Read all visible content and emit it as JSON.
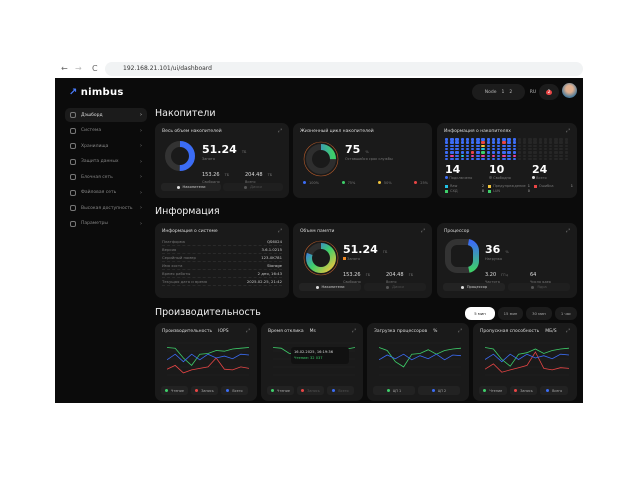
{
  "browser": {
    "url": "192.168.21.101/ui/dashboard",
    "back": "←",
    "forward": "→",
    "reload": "C"
  },
  "header": {
    "logo": "nimbus",
    "node_label": "Node",
    "nodes": [
      "1",
      "2"
    ],
    "lang": "RU",
    "alert_count": "2"
  },
  "sidebar": {
    "items": [
      {
        "label": "Дэшборд",
        "active": true
      },
      {
        "label": "Система"
      },
      {
        "label": "Хранилища"
      },
      {
        "label": "Защита данных"
      },
      {
        "label": "Блочная сеть"
      },
      {
        "label": "Файловая сеть"
      },
      {
        "label": "Высокая доступность"
      },
      {
        "label": "Параметры"
      }
    ]
  },
  "sections": {
    "storage": "Накопители",
    "info": "Информация",
    "perf": "Производительность"
  },
  "storage_total": {
    "title": "Весь объем накопителей",
    "used": "51.24",
    "used_unit": "ТБ",
    "used_label": "Занято",
    "free": "153.26",
    "free_unit": "ТБ",
    "free_label": "Свободно",
    "total": "204.48",
    "total_unit": "ТБ",
    "total_label": "Всего",
    "fill": 0.5,
    "btn1": "Накопители",
    "btn2": "Диски"
  },
  "lifecycle": {
    "title": "Жизненный цикл накопителей",
    "value": "75",
    "unit": "%",
    "label": "Оставшийся срок службы",
    "fill": 0.25,
    "legend": [
      {
        "label": "100%",
        "color": "#3b6cf5"
      },
      {
        "label": "75%",
        "color": "#3ecf6a"
      },
      {
        "label": "50%",
        "color": "#f2c53d"
      },
      {
        "label": "25%",
        "color": "#e84545"
      }
    ]
  },
  "drives": {
    "title": "Информация о накопителях",
    "connected": "14",
    "connected_label": "Подключено",
    "free": "10",
    "free_label": "Свободно",
    "total": "24",
    "total_label": "Всего",
    "legend": [
      {
        "label": "Raw",
        "count": "2",
        "color": "#22c3e6"
      },
      {
        "label": "Предупреждение",
        "count": "1",
        "color": "#f2c53d"
      },
      {
        "label": "Ошибка",
        "count": "1",
        "color": "#e84545"
      },
      {
        "label": "СХД",
        "count": "8",
        "color": "#3ecf6a"
      },
      {
        "label": "LUN",
        "count": "0",
        "color": "#3ecf6a"
      }
    ]
  },
  "sysinfo": {
    "title": "Информация о системе",
    "rows": [
      {
        "k": "Платформа",
        "v": "QS6024"
      },
      {
        "k": "Версия",
        "v": "3.6.1.0215"
      },
      {
        "k": "Серийный номер",
        "v": "123-0K781"
      },
      {
        "k": "Имя хоста",
        "v": "Storage"
      },
      {
        "k": "Время работы",
        "v": "2 дня, 16:43"
      },
      {
        "k": "Текущая дата и время",
        "v": "2025.02.25, 21:42"
      }
    ]
  },
  "memory": {
    "title": "Объем памяти",
    "used": "51.24",
    "used_unit": "ГБ",
    "used_label": "Занято",
    "free": "153.26",
    "free_unit": "ГБ",
    "free_label": "Свободно",
    "total": "204.48",
    "total_unit": "ГБ",
    "total_label": "Всего",
    "fill": 0.8,
    "btn1": "Накопители",
    "btn2": "Диски"
  },
  "cpu": {
    "title": "Процессор",
    "load": "36",
    "load_unit": "%",
    "load_label": "Нагрузка",
    "freq": "3.20",
    "freq_unit": "ГГц",
    "freq_label": "Частота",
    "cores": "64",
    "cores_label": "Число ядер",
    "fill": 0.36,
    "btn1": "Процессор",
    "btn2": "Ядра"
  },
  "time_ranges": [
    {
      "label": "5 мин",
      "active": true
    },
    {
      "label": "15 мин"
    },
    {
      "label": "30 мин"
    },
    {
      "label": "1 час"
    }
  ],
  "tooltip": {
    "time": "16.02.2025, 16:19:36",
    "value": "Чтение: 32 037"
  },
  "chart_data": [
    {
      "type": "line",
      "title": "Производительность",
      "unit": "IOPS",
      "series": [
        {
          "name": "Чтение",
          "color": "#3ecf6a",
          "values": [
            88,
            86,
            60,
            40,
            70,
            72,
            80,
            78,
            84,
            86,
            88
          ]
        },
        {
          "name": "Запись",
          "color": "#e84545",
          "values": [
            30,
            40,
            20,
            28,
            32,
            36,
            60,
            30,
            28,
            36,
            32
          ]
        },
        {
          "name": "Всего",
          "color": "#3b6cf5",
          "values": [
            55,
            70,
            50,
            70,
            55,
            70,
            60,
            65,
            58,
            70,
            68
          ]
        }
      ]
    },
    {
      "type": "line",
      "title": "Время отклика",
      "unit": "Ms",
      "series": [
        {
          "name": "Чтение",
          "color": "#3ecf6a",
          "values": [
            88,
            86,
            72,
            70,
            66,
            60,
            62,
            58,
            64,
            84,
            88
          ]
        },
        {
          "name": "Запись",
          "color": "#e84545",
          "values": []
        },
        {
          "name": "Всего",
          "color": "#3b6cf5",
          "values": []
        }
      ]
    },
    {
      "type": "line",
      "title": "Загрузка процессоров",
      "unit": "%",
      "series": [
        {
          "name": "ЦП 1",
          "color": "#3ecf6a",
          "values": [
            88,
            80,
            50,
            36,
            70,
            72,
            82,
            70,
            80,
            84,
            86
          ]
        },
        {
          "name": "ЦП 2",
          "color": "#3b6cf5",
          "values": [
            55,
            68,
            58,
            70,
            55,
            66,
            58,
            70,
            55,
            68,
            66
          ]
        }
      ]
    },
    {
      "type": "line",
      "title": "Пропускная способность",
      "unit": "МБ/S",
      "series": [
        {
          "name": "Чтение",
          "color": "#3ecf6a",
          "values": [
            88,
            84,
            56,
            38,
            70,
            74,
            84,
            72,
            80,
            84,
            86
          ]
        },
        {
          "name": "Запись",
          "color": "#e84545",
          "values": [
            30,
            44,
            22,
            28,
            34,
            40,
            76,
            32,
            28,
            34,
            32
          ]
        },
        {
          "name": "Всего",
          "color": "#3b6cf5",
          "values": [
            56,
            70,
            50,
            70,
            56,
            70,
            60,
            66,
            58,
            70,
            68
          ]
        }
      ]
    }
  ]
}
